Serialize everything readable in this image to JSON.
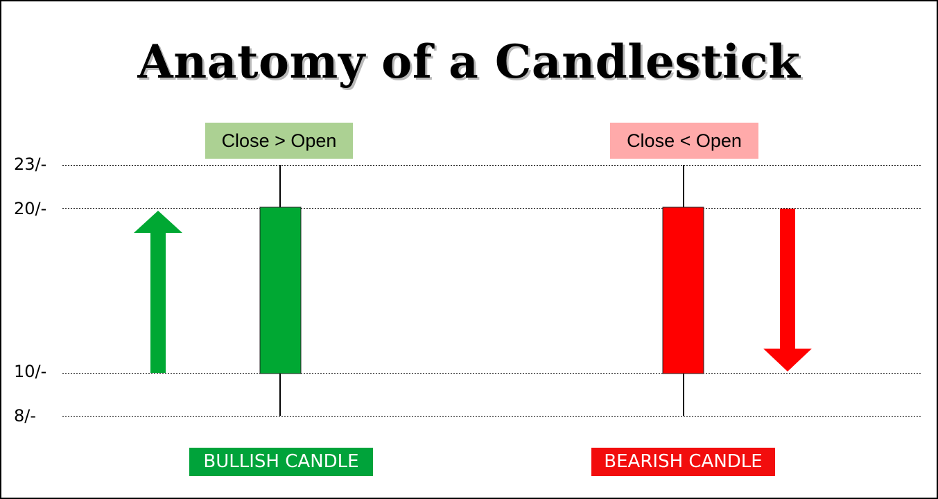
{
  "title_left": "Anatomy of a ",
  "title_right": "Candlestick",
  "y_axis": {
    "ticks": [
      {
        "value": 23,
        "label": "23/-"
      },
      {
        "value": 20,
        "label": "20/-"
      },
      {
        "value": 10,
        "label": "10/-"
      },
      {
        "value": 8,
        "label": "8/-"
      }
    ]
  },
  "bullish": {
    "condition_label": "Close > Open",
    "name_label": "BULLISH CANDLE",
    "open": 10,
    "close": 20,
    "high": 23,
    "low": 8,
    "direction": "up",
    "body_color": "#00a833",
    "label_bg": "#acd193",
    "name_bg": "#00a33a"
  },
  "bearish": {
    "condition_label": "Close < Open",
    "name_label": "BEARISH CANDLE",
    "open": 20,
    "close": 10,
    "high": 23,
    "low": 8,
    "direction": "down",
    "body_color": "#ff0000",
    "label_bg": "#ffaaaa",
    "name_bg": "#f20d0d"
  }
}
